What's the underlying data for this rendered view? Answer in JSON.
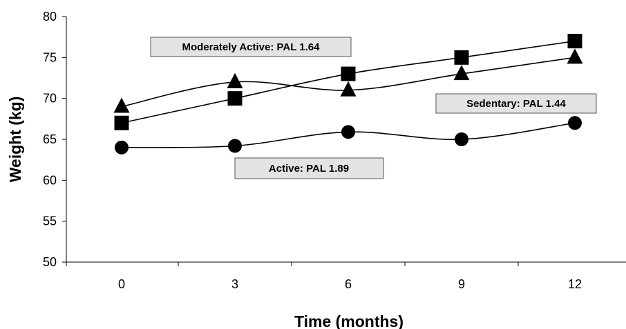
{
  "chart_data": {
    "type": "line",
    "xlabel": "Time (months)",
    "ylabel": "Weight (kg)",
    "categories": [
      "0",
      "3",
      "6",
      "9",
      "12"
    ],
    "x": [
      0,
      3,
      6,
      9,
      12
    ],
    "ylim": [
      50,
      80
    ],
    "yticks": [
      50,
      55,
      60,
      65,
      70,
      75,
      80
    ],
    "grid": false,
    "series": [
      {
        "name": "Moderately Active: PAL 1.64",
        "marker": "triangle",
        "values": [
          69,
          72,
          71,
          73,
          75
        ]
      },
      {
        "name": "Sedentary: PAL 1.44",
        "marker": "square",
        "values": [
          67,
          70,
          73,
          75,
          77
        ]
      },
      {
        "name": "Active: PAL 1.89",
        "marker": "circle",
        "values": [
          64,
          64.2,
          65.9,
          65,
          67
        ]
      }
    ],
    "annotations": [
      "Moderately Active: PAL 1.64",
      "Sedentary: PAL 1.44",
      "Active: PAL 1.89"
    ],
    "colors": {
      "line": "#000000",
      "marker": "#000000",
      "label_box": "#e3e3e3",
      "label_border": "#555555"
    }
  }
}
